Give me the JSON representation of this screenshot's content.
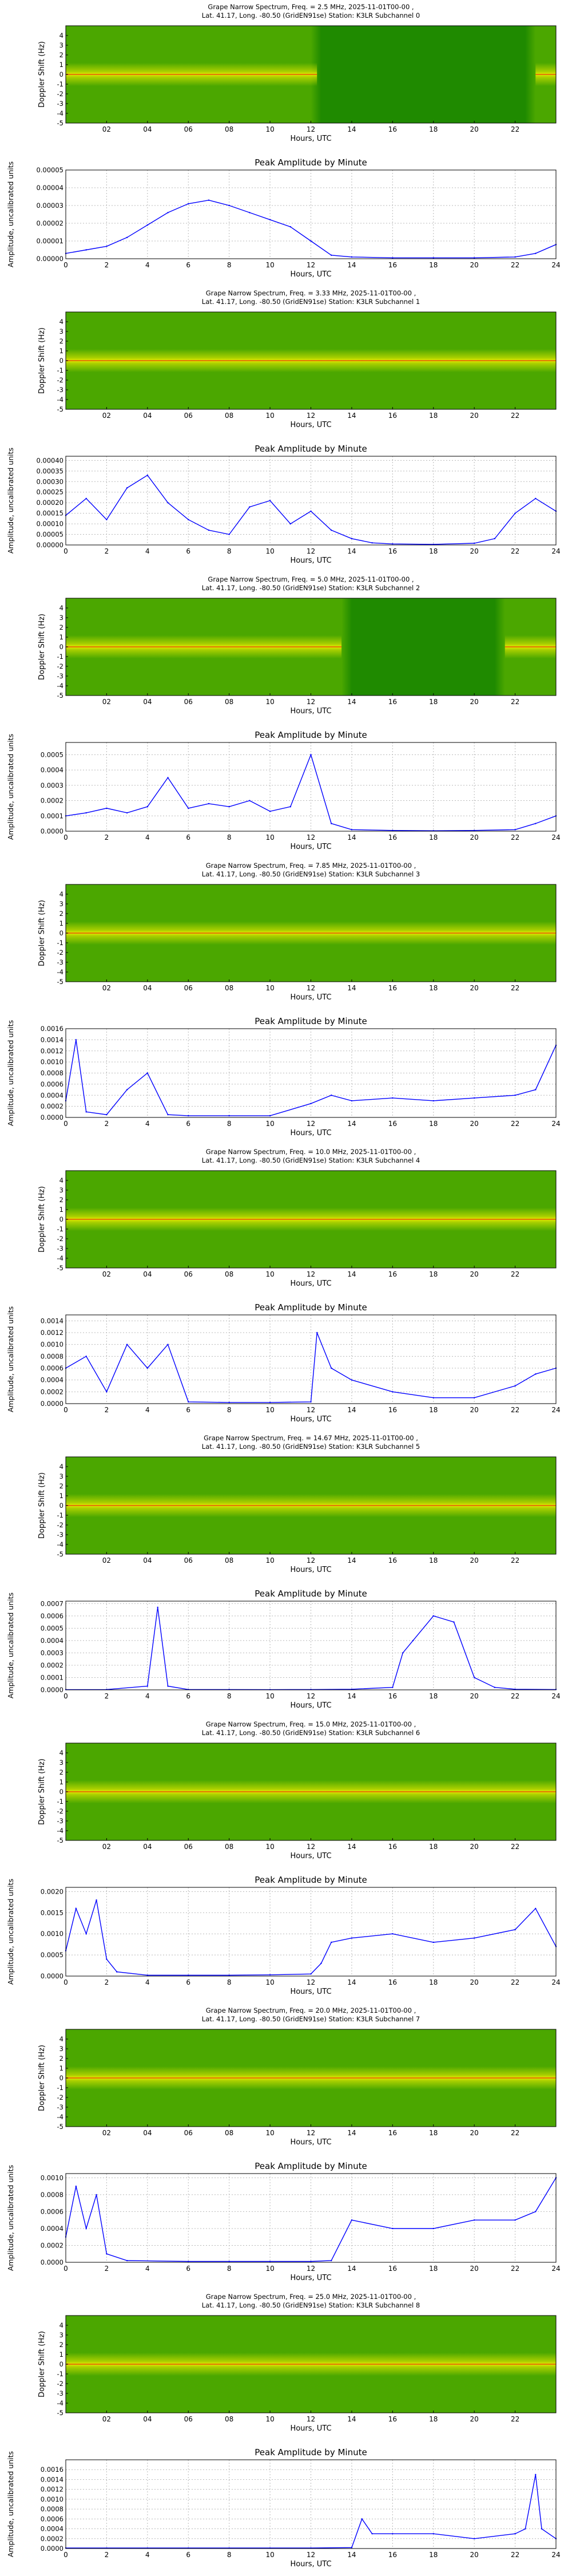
{
  "figure": {
    "spectrogram_ylabel": "Doppler Shift (Hz)",
    "spectrogram_xticks": [
      "02",
      "04",
      "06",
      "08",
      "10",
      "12",
      "14",
      "16",
      "18",
      "20",
      "22"
    ],
    "spectrogram_yticks": [
      "4",
      "3",
      "2",
      "1",
      "0",
      "-1",
      "-2",
      "-3",
      "-4",
      "-5"
    ],
    "xlabel": "Hours, UTC",
    "amp_title": "Peak Amplitude by Minute",
    "amp_ylabel": "Amplitude, uncalibrated units",
    "amp_xticks": [
      "0",
      "2",
      "4",
      "6",
      "8",
      "10",
      "12",
      "14",
      "16",
      "18",
      "20",
      "22",
      "24"
    ],
    "colors": {
      "line": "#0000ff",
      "spec_background": "#1f8a00",
      "spec_bright": "#f4f000",
      "spec_peak": "#e8200a",
      "grid": "#b8b8b8"
    }
  },
  "subchannels": [
    {
      "title_line1": "Grape Narrow Spectrum, Freq. = 2.5 MHz, 2025-11-01T00-00 ,",
      "title_line2": "Lat.  41.17, Long. -80.50 (GridEN91se) Station: K3LR Subchannel 0",
      "amp_yticks": [
        "0.00000",
        "0.00001",
        "0.00002",
        "0.00003",
        "0.00004",
        "0.00005"
      ]
    },
    {
      "title_line1": "Grape Narrow Spectrum, Freq. = 3.33 MHz, 2025-11-01T00-00 ,",
      "title_line2": "Lat.  41.17, Long. -80.50 (GridEN91se) Station: K3LR Subchannel 1",
      "amp_yticks": [
        "0.00000",
        "0.00005",
        "0.00010",
        "0.00015",
        "0.00020",
        "0.00025",
        "0.00030",
        "0.00035",
        "0.00040"
      ]
    },
    {
      "title_line1": "Grape Narrow Spectrum, Freq. = 5.0 MHz, 2025-11-01T00-00 ,",
      "title_line2": "Lat.  41.17, Long. -80.50 (GridEN91se) Station: K3LR Subchannel 2",
      "amp_yticks": [
        "0.0000",
        "0.0001",
        "0.0002",
        "0.0003",
        "0.0004",
        "0.0005"
      ]
    },
    {
      "title_line1": "Grape Narrow Spectrum, Freq. = 7.85 MHz, 2025-11-01T00-00 ,",
      "title_line2": "Lat.  41.17, Long. -80.50 (GridEN91se) Station: K3LR Subchannel 3",
      "amp_yticks": [
        "0.0000",
        "0.0002",
        "0.0004",
        "0.0006",
        "0.0008",
        "0.0010",
        "0.0012",
        "0.0014",
        "0.0016"
      ]
    },
    {
      "title_line1": "Grape Narrow Spectrum, Freq. = 10.0 MHz, 2025-11-01T00-00 ,",
      "title_line2": "Lat.  41.17, Long. -80.50 (GridEN91se) Station: K3LR Subchannel 4",
      "amp_yticks": [
        "0.0000",
        "0.0002",
        "0.0004",
        "0.0006",
        "0.0008",
        "0.0010",
        "0.0012",
        "0.0014"
      ]
    },
    {
      "title_line1": "Grape Narrow Spectrum, Freq. = 14.67 MHz, 2025-11-01T00-00 ,",
      "title_line2": "Lat.  41.17, Long. -80.50 (GridEN91se) Station: K3LR Subchannel 5",
      "amp_yticks": [
        "0.0000",
        "0.0001",
        "0.0002",
        "0.0003",
        "0.0004",
        "0.0005",
        "0.0006",
        "0.0007"
      ]
    },
    {
      "title_line1": "Grape Narrow Spectrum, Freq. = 15.0 MHz, 2025-11-01T00-00 ,",
      "title_line2": "Lat.  41.17, Long. -80.50 (GridEN91se) Station: K3LR Subchannel 6",
      "amp_yticks": [
        "0.0000",
        "0.0005",
        "0.0010",
        "0.0015",
        "0.0020"
      ]
    },
    {
      "title_line1": "Grape Narrow Spectrum, Freq. = 20.0 MHz, 2025-11-01T00-00 ,",
      "title_line2": "Lat.  41.17, Long. -80.50 (GridEN91se) Station: K3LR Subchannel 7",
      "amp_yticks": [
        "0.0000",
        "0.0002",
        "0.0004",
        "0.0006",
        "0.0008",
        "0.0010"
      ]
    },
    {
      "title_line1": "Grape Narrow Spectrum, Freq. = 25.0 MHz, 2025-11-01T00-00 ,",
      "title_line2": "Lat.  41.17, Long. -80.50 (GridEN91se) Station: K3LR Subchannel 8",
      "amp_yticks": [
        "0.0000",
        "0.0002",
        "0.0004",
        "0.0006",
        "0.0008",
        "0.0010",
        "0.0012",
        "0.0014",
        "0.0016"
      ]
    }
  ],
  "chart_data": [
    {
      "type": "heatmap",
      "subchannel": 0,
      "x_range": [
        0,
        24
      ],
      "y_range": [
        -5,
        5
      ],
      "active_hours": [
        [
          0,
          12.3
        ],
        [
          23,
          24
        ]
      ]
    },
    {
      "type": "line",
      "subchannel": 0,
      "ylim": [
        0,
        5e-05
      ],
      "x": [
        0,
        1,
        2,
        3,
        4,
        5,
        6,
        7,
        8,
        9,
        10,
        11,
        12,
        13,
        14,
        16,
        18,
        20,
        22,
        23,
        24
      ],
      "y": [
        3e-06,
        5e-06,
        7e-06,
        1.2e-05,
        1.9e-05,
        2.6e-05,
        3.1e-05,
        3.3e-05,
        3e-05,
        2.6e-05,
        2.2e-05,
        1.8e-05,
        1e-05,
        2e-06,
        1e-06,
        5e-07,
        5e-07,
        5e-07,
        1e-06,
        3e-06,
        8e-06
      ]
    },
    {
      "type": "heatmap",
      "subchannel": 1,
      "x_range": [
        0,
        24
      ],
      "y_range": [
        -5,
        5
      ],
      "active_hours": [
        [
          0,
          24
        ]
      ]
    },
    {
      "type": "line",
      "subchannel": 1,
      "ylim": [
        0,
        0.00042
      ],
      "x": [
        0,
        1,
        2,
        3,
        4,
        5,
        6,
        7,
        8,
        9,
        10,
        11,
        12,
        13,
        14,
        15,
        16,
        18,
        20,
        21,
        22,
        23,
        24
      ],
      "y": [
        0.00014,
        0.00022,
        0.00012,
        0.00027,
        0.00033,
        0.0002,
        0.00012,
        7e-05,
        5e-05,
        0.00018,
        0.00021,
        0.0001,
        0.00016,
        7e-05,
        3e-05,
        1e-05,
        5e-06,
        3e-06,
        8e-06,
        3e-05,
        0.00015,
        0.00022,
        0.00016
      ]
    },
    {
      "type": "heatmap",
      "subchannel": 2,
      "x_range": [
        0,
        24
      ],
      "y_range": [
        -5,
        5
      ],
      "active_hours": [
        [
          0,
          13.5
        ],
        [
          21.5,
          24
        ]
      ]
    },
    {
      "type": "line",
      "subchannel": 2,
      "ylim": [
        0,
        0.00058
      ],
      "x": [
        0,
        1,
        2,
        3,
        4,
        5,
        6,
        7,
        8,
        9,
        10,
        11,
        12,
        13,
        14,
        16,
        18,
        20,
        22,
        23,
        24
      ],
      "y": [
        0.0001,
        0.00012,
        0.00015,
        0.00012,
        0.00016,
        0.00035,
        0.00015,
        0.00018,
        0.00016,
        0.0002,
        0.00013,
        0.00016,
        0.0005,
        5e-05,
        1e-05,
        5e-06,
        3e-06,
        5e-06,
        1e-05,
        5e-05,
        0.0001
      ]
    },
    {
      "type": "heatmap",
      "subchannel": 3,
      "x_range": [
        0,
        24
      ],
      "y_range": [
        -5,
        5
      ],
      "active_hours": [
        [
          0,
          24
        ]
      ]
    },
    {
      "type": "line",
      "subchannel": 3,
      "ylim": [
        0,
        0.0016
      ],
      "x": [
        0,
        0.5,
        1,
        2,
        3,
        4,
        5,
        6,
        8,
        10,
        12,
        13,
        14,
        16,
        18,
        20,
        22,
        23,
        24
      ],
      "y": [
        0.0003,
        0.0014,
        0.0001,
        5e-05,
        0.0005,
        0.0008,
        5e-05,
        3e-05,
        3e-05,
        3e-05,
        0.00025,
        0.0004,
        0.0003,
        0.00035,
        0.0003,
        0.00035,
        0.0004,
        0.0005,
        0.0013
      ]
    },
    {
      "type": "heatmap",
      "subchannel": 4,
      "x_range": [
        0,
        24
      ],
      "y_range": [
        -5,
        5
      ],
      "active_hours": [
        [
          0,
          24
        ]
      ]
    },
    {
      "type": "line",
      "subchannel": 4,
      "ylim": [
        0,
        0.0015
      ],
      "x": [
        0,
        1,
        2,
        3,
        4,
        5,
        6,
        8,
        10,
        12,
        12.3,
        13,
        14,
        16,
        18,
        20,
        22,
        23,
        24
      ],
      "y": [
        0.0006,
        0.0008,
        0.0002,
        0.001,
        0.0006,
        0.001,
        3e-05,
        2e-05,
        2e-05,
        3e-05,
        0.0012,
        0.0006,
        0.0004,
        0.0002,
        0.0001,
        0.0001,
        0.0003,
        0.0005,
        0.0006
      ]
    },
    {
      "type": "heatmap",
      "subchannel": 5,
      "x_range": [
        0,
        24
      ],
      "y_range": [
        -5,
        5
      ],
      "active_hours": [
        [
          0,
          24
        ]
      ]
    },
    {
      "type": "line",
      "subchannel": 5,
      "ylim": [
        0,
        0.00072
      ],
      "x": [
        0,
        2,
        4,
        4.5,
        5,
        6,
        8,
        10,
        12,
        14,
        16,
        16.5,
        17,
        18,
        19,
        20,
        21,
        22,
        24
      ],
      "y": [
        2e-06,
        3e-06,
        3e-05,
        0.00067,
        3e-05,
        3e-06,
        3e-06,
        2e-06,
        3e-06,
        5e-06,
        2e-05,
        0.0003,
        0.0004,
        0.0006,
        0.00055,
        0.0001,
        2e-05,
        5e-06,
        3e-06
      ]
    },
    {
      "type": "heatmap",
      "subchannel": 6,
      "x_range": [
        0,
        24
      ],
      "y_range": [
        -5,
        5
      ],
      "active_hours": [
        [
          0,
          24
        ]
      ]
    },
    {
      "type": "line",
      "subchannel": 6,
      "ylim": [
        0,
        0.0021
      ],
      "x": [
        0,
        0.5,
        1,
        1.5,
        2,
        2.5,
        4,
        6,
        8,
        10,
        12,
        12.5,
        13,
        14,
        16,
        18,
        20,
        22,
        23,
        24
      ],
      "y": [
        0.0006,
        0.0016,
        0.001,
        0.0018,
        0.0004,
        0.0001,
        2e-05,
        2e-05,
        2e-05,
        3e-05,
        5e-05,
        0.0003,
        0.0008,
        0.0009,
        0.001,
        0.0008,
        0.0009,
        0.0011,
        0.0016,
        0.0007
      ]
    },
    {
      "type": "heatmap",
      "subchannel": 7,
      "x_range": [
        0,
        24
      ],
      "y_range": [
        -5,
        5
      ],
      "active_hours": [
        [
          0,
          24
        ]
      ]
    },
    {
      "type": "line",
      "subchannel": 7,
      "ylim": [
        0,
        0.00105
      ],
      "x": [
        0,
        0.5,
        1,
        1.5,
        2,
        3,
        6,
        8,
        10,
        12,
        13,
        14,
        16,
        18,
        20,
        22,
        23,
        24
      ],
      "y": [
        0.0003,
        0.0009,
        0.0004,
        0.0008,
        0.0001,
        2e-05,
        1e-05,
        1e-05,
        1e-05,
        1e-05,
        2e-05,
        0.0005,
        0.0004,
        0.0004,
        0.0005,
        0.0005,
        0.0006,
        0.001
      ]
    },
    {
      "type": "heatmap",
      "subchannel": 8,
      "x_range": [
        0,
        24
      ],
      "y_range": [
        -5,
        5
      ],
      "active_hours": [
        [
          0,
          24
        ]
      ]
    },
    {
      "type": "line",
      "subchannel": 8,
      "ylim": [
        0,
        0.0018
      ],
      "x": [
        0,
        2,
        4,
        6,
        8,
        10,
        12,
        14,
        14.5,
        15,
        16,
        18,
        20,
        22,
        22.5,
        23,
        23.3,
        24
      ],
      "y": [
        1e-05,
        1e-05,
        1e-05,
        1e-05,
        1e-05,
        1e-05,
        1e-05,
        2e-05,
        0.0006,
        0.0003,
        0.0003,
        0.0003,
        0.0002,
        0.0003,
        0.0004,
        0.0015,
        0.0004,
        0.0002
      ]
    }
  ]
}
